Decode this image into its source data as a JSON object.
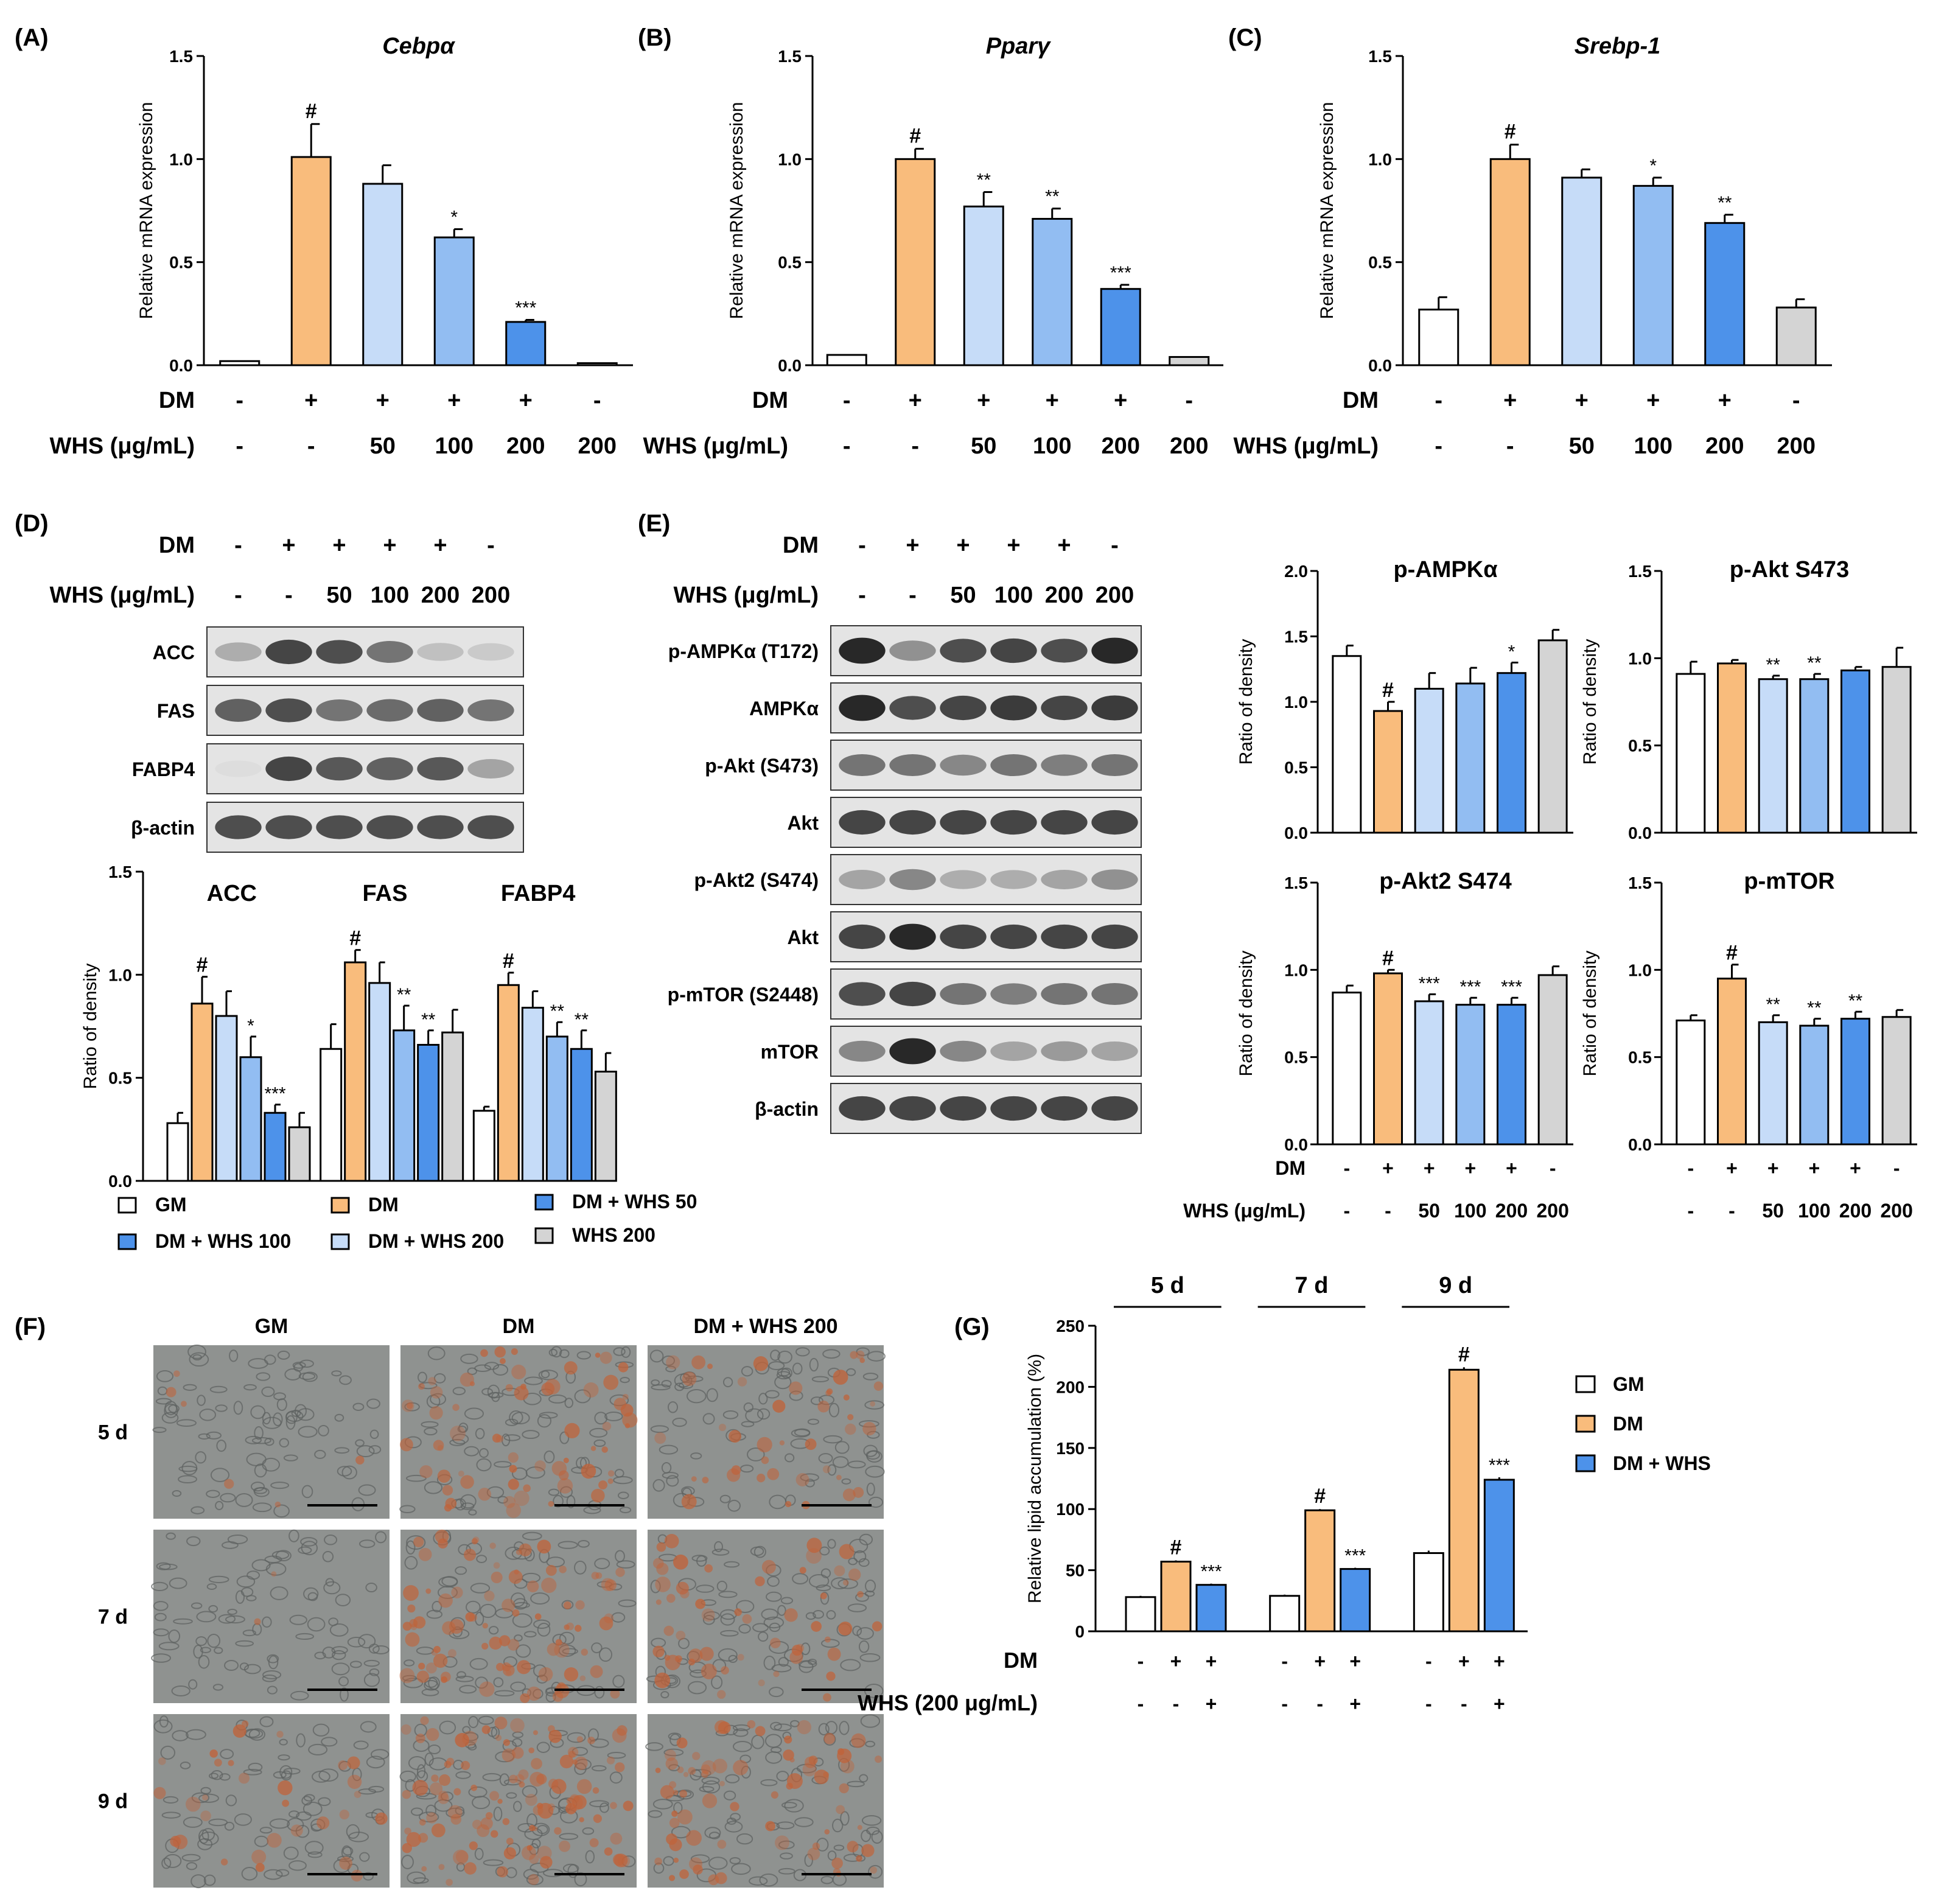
{
  "colors": {
    "GM": "#ffffff",
    "DM": "#f9bc7c",
    "WHS50": "#c6dcf8",
    "WHS100": "#92bdf2",
    "WHS200": "#4d92ea",
    "WHSonly": "#d4d4d4",
    "edge": "#000000"
  },
  "panel_labels": [
    "(A)",
    "(B)",
    "(C)",
    "(D)",
    "(E)",
    "(F)",
    "(G)"
  ],
  "condition_rows": {
    "dm_label": "DM",
    "whs_label": "WHS (μg/mL)",
    "dm_values": [
      "-",
      "+",
      "+",
      "+",
      "+",
      "-"
    ],
    "whs_values": [
      "-",
      "-",
      "50",
      "100",
      "200",
      "200"
    ],
    "whs_label_g": "WHS (200 μg/mL)",
    "dm_values_g": [
      "-",
      "+",
      "+",
      "-",
      "+",
      "+",
      "-",
      "+",
      "+"
    ],
    "whs_values_g": [
      "-",
      "-",
      "+",
      "-",
      "-",
      "+",
      "-",
      "-",
      "+"
    ]
  },
  "chart_data": [
    {
      "id": "A",
      "type": "bar",
      "title": "Cebpα",
      "ylabel": "Relative mRNA expression",
      "ylim": [
        0,
        1.5
      ],
      "yticks": [
        "0.0",
        "0.5",
        "1.0",
        "1.5"
      ],
      "values": [
        0.02,
        1.01,
        0.88,
        0.62,
        0.21,
        0.01
      ],
      "errors": [
        0.0,
        0.16,
        0.09,
        0.04,
        0.01,
        0.0
      ],
      "annotations": [
        "",
        "#",
        "",
        "*",
        "***",
        ""
      ]
    },
    {
      "id": "B",
      "type": "bar",
      "title": "Pparγ",
      "ylabel": "Relative mRNA expression",
      "ylim": [
        0,
        1.5
      ],
      "yticks": [
        "0.0",
        "0.5",
        "1.0",
        "1.5"
      ],
      "values": [
        0.05,
        1.0,
        0.77,
        0.71,
        0.37,
        0.04
      ],
      "errors": [
        0.0,
        0.05,
        0.07,
        0.05,
        0.02,
        0.0
      ],
      "annotations": [
        "",
        "#",
        "**",
        "**",
        "***",
        ""
      ]
    },
    {
      "id": "C",
      "type": "bar",
      "title": "Srebp-1",
      "ylabel": "Relative mRNA expression",
      "ylim": [
        0,
        1.5
      ],
      "yticks": [
        "0.0",
        "0.5",
        "1.0",
        "1.5"
      ],
      "values": [
        0.27,
        1.0,
        0.91,
        0.87,
        0.69,
        0.28
      ],
      "errors": [
        0.06,
        0.07,
        0.04,
        0.04,
        0.04,
        0.04
      ],
      "annotations": [
        "",
        "#",
        "",
        "*",
        "**",
        ""
      ]
    },
    {
      "id": "D",
      "type": "bar",
      "ylabel": "Ratio of density",
      "ylim": [
        0,
        1.5
      ],
      "yticks": [
        "0.0",
        "0.5",
        "1.0",
        "1.5"
      ],
      "categories": [
        "ACC",
        "FAS",
        "FABP4"
      ],
      "series": [
        {
          "name": "GM",
          "values": [
            0.28,
            0.64,
            0.34
          ],
          "errors": [
            0.05,
            0.12,
            0.02
          ],
          "annotations": [
            "",
            "",
            ""
          ]
        },
        {
          "name": "DM",
          "values": [
            0.86,
            1.06,
            0.95
          ],
          "errors": [
            0.13,
            0.06,
            0.06
          ],
          "annotations": [
            "#",
            "#",
            "#"
          ]
        },
        {
          "name": "DM + WHS 200",
          "values": [
            0.8,
            0.96,
            0.84
          ],
          "errors": [
            0.12,
            0.1,
            0.08
          ],
          "annotations": [
            "",
            "",
            ""
          ]
        },
        {
          "name": "DM + WHS 100",
          "values": [
            0.6,
            0.73,
            0.7
          ],
          "errors": [
            0.1,
            0.12,
            0.07
          ],
          "annotations": [
            "*",
            "**",
            "**"
          ]
        },
        {
          "name": "DM + WHS 50",
          "values": [
            0.33,
            0.66,
            0.64
          ],
          "errors": [
            0.04,
            0.07,
            0.09
          ],
          "annotations": [
            "***",
            "**",
            "**"
          ]
        },
        {
          "name": "WHS 200",
          "values": [
            0.26,
            0.72,
            0.53
          ],
          "errors": [
            0.07,
            0.11,
            0.09
          ],
          "annotations": [
            "",
            "",
            ""
          ]
        }
      ],
      "legend": [
        "GM",
        "DM",
        "DM + WHS 50",
        "DM + WHS 100",
        "DM + WHS 200",
        "WHS 200"
      ]
    },
    {
      "id": "E1",
      "type": "bar",
      "title": "p-AMPKα",
      "ylabel": "Ratio of density",
      "ylim": [
        0,
        2.0
      ],
      "yticks": [
        "0.0",
        "0.5",
        "1.0",
        "1.5",
        "2.0"
      ],
      "values": [
        1.35,
        0.93,
        1.1,
        1.14,
        1.22,
        1.47
      ],
      "errors": [
        0.08,
        0.07,
        0.12,
        0.12,
        0.08,
        0.08
      ],
      "annotations": [
        "",
        "#",
        "",
        "",
        "*",
        ""
      ]
    },
    {
      "id": "E2",
      "type": "bar",
      "title": "p-Akt S473",
      "ylabel": "Ratio of density",
      "ylim": [
        0,
        1.5
      ],
      "yticks": [
        "0.0",
        "0.5",
        "1.0",
        "1.5"
      ],
      "values": [
        0.91,
        0.97,
        0.88,
        0.88,
        0.93,
        0.95
      ],
      "errors": [
        0.07,
        0.02,
        0.02,
        0.03,
        0.02,
        0.11
      ],
      "annotations": [
        "",
        "",
        "**",
        "**",
        "",
        ""
      ]
    },
    {
      "id": "E3",
      "type": "bar",
      "title": "p-Akt2 S474",
      "ylabel": "Ratio of density",
      "ylim": [
        0,
        1.5
      ],
      "yticks": [
        "0.0",
        "0.5",
        "1.0",
        "1.5"
      ],
      "values": [
        0.87,
        0.98,
        0.82,
        0.8,
        0.8,
        0.97
      ],
      "errors": [
        0.04,
        0.02,
        0.04,
        0.04,
        0.04,
        0.05
      ],
      "annotations": [
        "",
        "#",
        "***",
        "***",
        "***",
        ""
      ]
    },
    {
      "id": "E4",
      "type": "bar",
      "title": "p-mTOR",
      "ylabel": "Ratio of density",
      "ylim": [
        0,
        1.5
      ],
      "yticks": [
        "0.0",
        "0.5",
        "1.0",
        "1.5"
      ],
      "values": [
        0.71,
        0.95,
        0.7,
        0.68,
        0.72,
        0.73
      ],
      "errors": [
        0.03,
        0.08,
        0.04,
        0.04,
        0.04,
        0.04
      ],
      "annotations": [
        "",
        "#",
        "**",
        "**",
        "**",
        ""
      ]
    },
    {
      "id": "G",
      "type": "bar",
      "ylabel": "Relative lipid accumulation (%)",
      "ylim": [
        0,
        250
      ],
      "yticks": [
        "0",
        "50",
        "100",
        "150",
        "200",
        "250"
      ],
      "categories": [
        "5 d",
        "7 d",
        "9 d"
      ],
      "series": [
        {
          "name": "GM",
          "values": [
            28,
            29,
            64
          ],
          "errors": [
            1,
            1,
            2
          ],
          "annotations": [
            "",
            "",
            ""
          ]
        },
        {
          "name": "DM",
          "values": [
            57,
            99,
            214
          ],
          "errors": [
            1,
            1,
            2
          ],
          "annotations": [
            "#",
            "#",
            "#"
          ]
        },
        {
          "name": "DM + WHS",
          "values": [
            38,
            51,
            124
          ],
          "errors": [
            1,
            1,
            2
          ],
          "annotations": [
            "***",
            "***",
            "***"
          ]
        }
      ],
      "legend": [
        "GM",
        "DM",
        "DM + WHS"
      ]
    }
  ],
  "blot_D": {
    "rows": [
      "ACC",
      "FAS",
      "FABP4",
      "β-actin"
    ],
    "intensities": [
      [
        0.3,
        0.85,
        0.8,
        0.6,
        0.2,
        0.15
      ],
      [
        0.7,
        0.8,
        0.6,
        0.65,
        0.7,
        0.6
      ],
      [
        0.05,
        0.85,
        0.75,
        0.7,
        0.75,
        0.35
      ],
      [
        0.8,
        0.8,
        0.8,
        0.8,
        0.8,
        0.8
      ]
    ]
  },
  "blot_E": {
    "rows": [
      "p-AMPKα (T172)",
      "AMPKα",
      "p-Akt (S473)",
      "Akt",
      "p-Akt2 (S474)",
      "Akt",
      "p-mTOR (S2448)",
      "mTOR",
      "β-actin"
    ],
    "intensities": [
      [
        1.0,
        0.45,
        0.8,
        0.85,
        0.8,
        1.0
      ],
      [
        1.0,
        0.8,
        0.85,
        0.9,
        0.85,
        0.9
      ],
      [
        0.6,
        0.6,
        0.5,
        0.6,
        0.55,
        0.6
      ],
      [
        0.85,
        0.85,
        0.85,
        0.85,
        0.85,
        0.85
      ],
      [
        0.35,
        0.5,
        0.3,
        0.3,
        0.35,
        0.45
      ],
      [
        0.85,
        1.0,
        0.85,
        0.85,
        0.85,
        0.85
      ],
      [
        0.8,
        0.85,
        0.6,
        0.55,
        0.6,
        0.6
      ],
      [
        0.5,
        1.0,
        0.5,
        0.35,
        0.4,
        0.35
      ],
      [
        0.85,
        0.85,
        0.85,
        0.85,
        0.85,
        0.85
      ]
    ]
  },
  "micrographs": {
    "columns": [
      "GM",
      "DM",
      "DM + WHS 200"
    ],
    "rows": [
      "5 d",
      "7 d",
      "9 d"
    ],
    "stain_level": [
      [
        0.05,
        0.55,
        0.35
      ],
      [
        0.02,
        0.7,
        0.45
      ],
      [
        0.25,
        0.9,
        0.6
      ]
    ]
  }
}
